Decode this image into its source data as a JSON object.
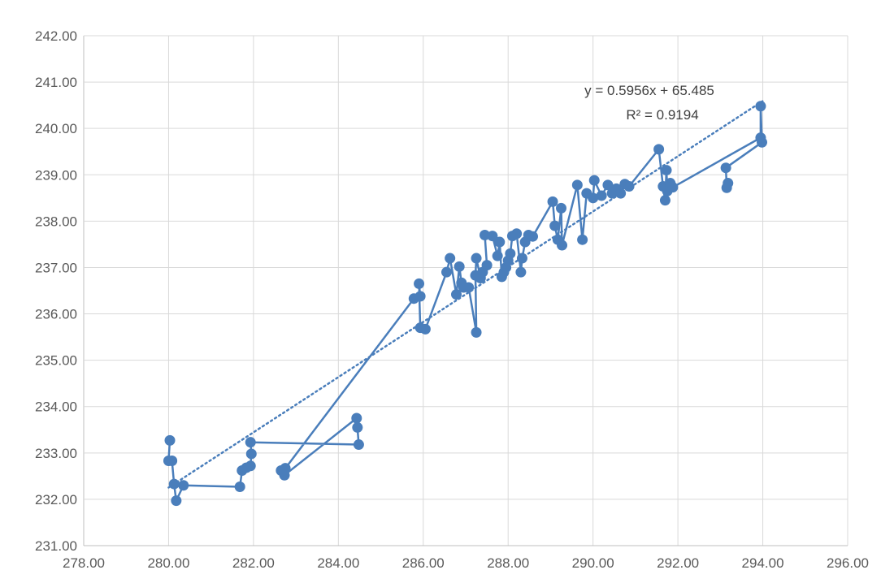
{
  "chart_data": {
    "type": "scatter",
    "title": "",
    "xlabel": "",
    "ylabel": "",
    "xlim": [
      278,
      296
    ],
    "ylim": [
      231,
      242
    ],
    "x_ticks": [
      "278.00",
      "280.00",
      "282.00",
      "284.00",
      "286.00",
      "288.00",
      "290.00",
      "292.00",
      "294.00",
      "296.00"
    ],
    "y_ticks": [
      "231.00",
      "232.00",
      "233.00",
      "234.00",
      "235.00",
      "236.00",
      "237.00",
      "238.00",
      "239.00",
      "240.00",
      "241.00",
      "242.00"
    ],
    "grid": "on (vertical and horizontal)",
    "legend": "none",
    "series_color": "#4a7ebb",
    "trendline": {
      "kind": "linear",
      "style": "dotted",
      "slope": 0.5956,
      "intercept": 65.485,
      "x_range": [
        280,
        294
      ],
      "equation": "y = 0.5956x + 65.485",
      "r_squared": "R² = 0.9194"
    },
    "series": [
      {
        "points": [
          [
            280.03,
            233.27
          ],
          [
            280.0,
            232.83
          ],
          [
            280.08,
            232.83
          ],
          [
            280.13,
            232.33
          ],
          [
            280.18,
            231.97
          ],
          [
            280.35,
            232.3
          ],
          [
            281.68,
            232.27
          ],
          [
            281.73,
            232.62
          ],
          [
            281.83,
            232.68
          ],
          [
            281.93,
            232.72
          ],
          [
            281.95,
            232.98
          ],
          [
            281.93,
            233.23
          ],
          [
            284.48,
            233.18
          ],
          [
            284.45,
            233.55
          ],
          [
            284.43,
            233.75
          ],
          [
            282.73,
            232.52
          ],
          [
            282.65,
            232.62
          ],
          [
            282.75,
            232.67
          ],
          [
            285.78,
            236.33
          ],
          [
            285.93,
            236.38
          ],
          [
            285.9,
            236.65
          ],
          [
            285.93,
            235.7
          ],
          [
            286.05,
            235.67
          ],
          [
            286.55,
            236.9
          ],
          [
            286.63,
            237.2
          ],
          [
            286.78,
            236.42
          ],
          [
            286.85,
            237.02
          ],
          [
            286.9,
            236.67
          ],
          [
            286.95,
            236.57
          ],
          [
            287.07,
            236.57
          ],
          [
            287.25,
            235.6
          ],
          [
            287.23,
            236.83
          ],
          [
            287.25,
            237.2
          ],
          [
            287.35,
            236.77
          ],
          [
            287.4,
            236.9
          ],
          [
            287.5,
            237.05
          ],
          [
            287.45,
            237.7
          ],
          [
            287.63,
            237.68
          ],
          [
            287.75,
            237.25
          ],
          [
            287.8,
            237.55
          ],
          [
            287.85,
            236.8
          ],
          [
            287.9,
            236.9
          ],
          [
            287.95,
            237.0
          ],
          [
            288.0,
            237.15
          ],
          [
            288.05,
            237.3
          ],
          [
            288.1,
            237.68
          ],
          [
            288.2,
            237.73
          ],
          [
            288.3,
            236.9
          ],
          [
            288.33,
            237.2
          ],
          [
            288.4,
            237.55
          ],
          [
            288.48,
            237.7
          ],
          [
            288.58,
            237.67
          ],
          [
            289.05,
            238.42
          ],
          [
            289.1,
            237.9
          ],
          [
            289.17,
            237.6
          ],
          [
            289.25,
            238.28
          ],
          [
            289.27,
            237.48
          ],
          [
            289.63,
            238.78
          ],
          [
            289.75,
            237.6
          ],
          [
            289.85,
            238.6
          ],
          [
            290.0,
            238.5
          ],
          [
            290.03,
            238.88
          ],
          [
            290.2,
            238.55
          ],
          [
            290.35,
            238.78
          ],
          [
            290.45,
            238.6
          ],
          [
            290.55,
            238.7
          ],
          [
            290.65,
            238.6
          ],
          [
            290.75,
            238.8
          ],
          [
            290.85,
            238.75
          ],
          [
            291.55,
            239.55
          ],
          [
            291.65,
            238.75
          ],
          [
            291.7,
            238.45
          ],
          [
            291.73,
            239.1
          ],
          [
            291.75,
            238.65
          ],
          [
            291.82,
            238.82
          ],
          [
            291.88,
            238.73
          ],
          [
            293.95,
            239.8
          ],
          [
            293.95,
            240.48
          ],
          [
            293.98,
            239.7
          ],
          [
            293.13,
            239.15
          ],
          [
            293.15,
            238.72
          ],
          [
            293.18,
            238.82
          ]
        ]
      }
    ]
  }
}
